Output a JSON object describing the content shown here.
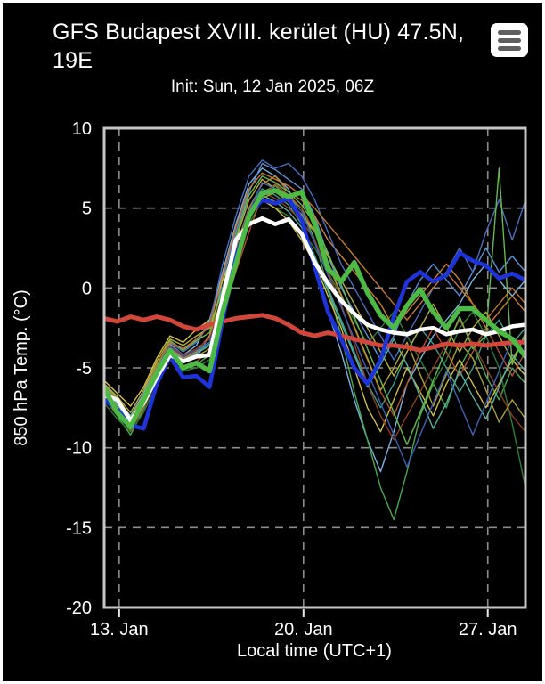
{
  "header": {
    "title": "GFS Budapest XVIII. kerület (HU) 47.5N, 19E",
    "init_label": "Init: Sun, 12 Jan 2025, 06Z",
    "menu_icon": "hamburger-icon"
  },
  "colors": {
    "background": "#000000",
    "text": "#ffffff",
    "grid": "#8c8c8c",
    "plot_border": "#c6c6c6",
    "red_reference": "#d2463c",
    "blue_highlight": "#1e34d8",
    "white_highlight": "#ffffff",
    "green_highlight": "#4cba45"
  },
  "chart_data": {
    "type": "line",
    "title": "GFS Budapest XVIII. kerület (HU) 47.5N, 19E",
    "subtitle": "Init: Sun, 12 Jan 2025, 06Z",
    "xlabel": "Local time (UTC+1)",
    "ylabel": "850 hPa Temp. (°C)",
    "ylim": [
      -20,
      10
    ],
    "yticks": [
      10,
      5,
      0,
      -5,
      -10,
      -15,
      -20
    ],
    "xtick_labels": [
      "13. Jan",
      "20. Jan",
      "27. Jan"
    ],
    "xtick_positions_days": [
      0.57,
      7.57,
      14.57
    ],
    "x_range_days": [
      0,
      16
    ],
    "x_step_days": 0.5,
    "grid": "dashed",
    "legend": "none",
    "series": [
      {
        "name": "member-01",
        "role": "ensemble-member",
        "color": "#7ab3e2",
        "width": 1.4,
        "values": [
          -6.2,
          -7.0,
          -8.0,
          -6.6,
          -4.8,
          -3.5,
          -4.2,
          -3.6,
          -2.0,
          1.0,
          4.0,
          6.5,
          7.5,
          7.0,
          6.2,
          4.2,
          1.5,
          -1.5,
          -4.0,
          -7.0,
          -9.5,
          -11.5,
          -9.0,
          -6.0,
          -4.5,
          -3.0,
          -2.0,
          -1.0,
          0.5,
          1.5,
          0.5,
          -0.5,
          0.5
        ]
      },
      {
        "name": "member-02",
        "role": "ensemble-member",
        "color": "#5b8fd8",
        "width": 1.4,
        "values": [
          -6.8,
          -7.8,
          -8.8,
          -7.4,
          -5.6,
          -4.0,
          -4.6,
          -4.4,
          -3.0,
          0.5,
          3.5,
          6.0,
          7.8,
          7.4,
          6.8,
          6.2,
          4.5,
          2.0,
          0.0,
          -1.5,
          -3.0,
          -4.5,
          -3.0,
          -1.0,
          0.5,
          1.5,
          0.5,
          -0.5,
          1.0,
          2.5,
          1.0,
          2.0,
          1.0
        ]
      },
      {
        "name": "member-03",
        "role": "ensemble-member",
        "color": "#3f9e8e",
        "width": 1.4,
        "values": [
          -6.4,
          -7.2,
          -8.4,
          -7.0,
          -5.2,
          -3.8,
          -4.4,
          -4.0,
          -3.5,
          -0.5,
          2.5,
          5.0,
          6.2,
          5.8,
          5.2,
          4.0,
          2.0,
          0.0,
          -2.0,
          -4.0,
          -6.0,
          -7.5,
          -6.0,
          -4.0,
          -2.5,
          -3.5,
          -5.0,
          -6.5,
          -5.0,
          -3.0,
          -2.0,
          -3.5,
          -2.5
        ]
      },
      {
        "name": "member-04",
        "role": "ensemble-member",
        "color": "#49a94f",
        "width": 1.4,
        "values": [
          -6.9,
          -8.0,
          -9.2,
          -7.6,
          -5.6,
          -4.2,
          -5.0,
          -4.8,
          -4.2,
          -1.0,
          2.0,
          4.8,
          6.0,
          6.4,
          5.6,
          5.0,
          3.0,
          0.0,
          -3.0,
          -6.5,
          -9.5,
          -12.5,
          -14.5,
          -11.5,
          -8.0,
          -6.0,
          -7.5,
          -5.0,
          -3.5,
          -5.5,
          -7.0,
          -5.0,
          -6.0
        ]
      },
      {
        "name": "member-05",
        "role": "ensemble-member",
        "color": "#2f7d36",
        "width": 1.4,
        "values": [
          -7.2,
          -8.2,
          -9.0,
          -7.8,
          -6.0,
          -4.5,
          -5.2,
          -5.0,
          -4.5,
          -1.5,
          1.5,
          4.0,
          5.5,
          5.0,
          4.5,
          3.5,
          2.5,
          1.0,
          -0.5,
          -2.0,
          -3.5,
          -2.5,
          -1.5,
          -3.0,
          -4.5,
          -6.0,
          -4.5,
          -2.5,
          -1.5,
          -3.0,
          -5.0,
          -8.5,
          -12.5
        ]
      },
      {
        "name": "member-06",
        "role": "ensemble-member",
        "color": "#b6b13d",
        "width": 1.4,
        "values": [
          -6.0,
          -6.8,
          -7.8,
          -6.4,
          -4.6,
          -3.2,
          -3.6,
          -3.0,
          -2.5,
          0.0,
          3.0,
          5.5,
          6.8,
          6.2,
          5.5,
          4.5,
          3.5,
          2.0,
          0.5,
          -1.0,
          -2.5,
          -4.0,
          -5.5,
          -4.0,
          -2.5,
          -1.0,
          -2.5,
          -4.0,
          -2.5,
          -1.5,
          -3.0,
          -4.5,
          -3.0
        ]
      },
      {
        "name": "member-07",
        "role": "ensemble-member",
        "color": "#d2bf45",
        "width": 1.4,
        "values": [
          -5.8,
          -6.6,
          -7.4,
          -6.2,
          -4.4,
          -3.0,
          -3.4,
          -2.6,
          -2.0,
          0.5,
          2.5,
          4.5,
          5.5,
          5.0,
          4.2,
          3.0,
          1.5,
          -0.5,
          -2.5,
          -5.0,
          -7.5,
          -9.0,
          -7.0,
          -5.0,
          -6.5,
          -8.0,
          -6.0,
          -4.5,
          -6.0,
          -7.5,
          -6.0,
          -4.5,
          -5.5
        ]
      },
      {
        "name": "member-08",
        "role": "ensemble-member",
        "color": "#cd8133",
        "width": 1.4,
        "values": [
          -6.6,
          -7.4,
          -8.6,
          -7.2,
          -5.4,
          -3.8,
          -4.4,
          -4.0,
          -3.0,
          -0.5,
          2.5,
          5.0,
          6.5,
          7.0,
          6.0,
          5.5,
          4.5,
          3.0,
          2.0,
          1.0,
          0.0,
          -1.0,
          -2.5,
          -1.5,
          -0.5,
          0.5,
          1.5,
          0.5,
          -1.0,
          -2.5,
          -1.5,
          -0.5,
          -1.5
        ]
      },
      {
        "name": "member-09",
        "role": "ensemble-member",
        "color": "#b0522b",
        "width": 1.4,
        "values": [
          -7.0,
          -7.9,
          -8.9,
          -7.5,
          -5.8,
          -4.3,
          -5.0,
          -4.6,
          -4.0,
          -1.5,
          1.0,
          3.5,
          5.8,
          6.5,
          5.8,
          5.0,
          3.5,
          1.5,
          -0.5,
          -2.5,
          -4.5,
          -6.5,
          -8.0,
          -6.0,
          -4.0,
          -2.5,
          -4.0,
          -5.5,
          -4.0,
          -2.5,
          -4.0,
          -5.5,
          -4.0
        ]
      },
      {
        "name": "member-10",
        "role": "ensemble-member",
        "color": "#8e3d22",
        "width": 1.4,
        "values": [
          -6.7,
          -7.6,
          -8.4,
          -7.0,
          -5.0,
          -3.6,
          -4.2,
          -3.8,
          -3.2,
          -1.0,
          2.0,
          4.2,
          6.0,
          5.6,
          5.0,
          4.2,
          3.0,
          1.0,
          -1.0,
          -3.5,
          -6.0,
          -8.0,
          -9.5,
          -8.0,
          -6.5,
          -5.0,
          -3.5,
          -2.0,
          -3.5,
          -5.0,
          -6.5,
          -8.0,
          -9.0
        ]
      },
      {
        "name": "member-11",
        "role": "ensemble-member",
        "color": "#4a6fbf",
        "width": 1.4,
        "values": [
          -6.3,
          -7.1,
          -8.2,
          -6.8,
          -5.0,
          -3.4,
          -4.0,
          -3.4,
          -2.2,
          1.5,
          4.5,
          7.0,
          8.0,
          7.5,
          7.8,
          7.0,
          5.5,
          3.5,
          1.5,
          0.0,
          -1.5,
          -3.0,
          -4.5,
          -3.0,
          -1.5,
          0.0,
          1.0,
          2.5,
          1.0,
          3.5,
          5.5,
          3.0,
          5.5
        ]
      },
      {
        "name": "member-12",
        "role": "ensemble-member",
        "color": "#58b0a0",
        "width": 1.4,
        "values": [
          -6.5,
          -7.3,
          -8.5,
          -7.1,
          -5.3,
          -3.9,
          -4.5,
          -4.1,
          -3.6,
          -1.0,
          2.0,
          4.6,
          5.8,
          5.4,
          4.8,
          3.8,
          1.8,
          -0.2,
          -2.2,
          -4.2,
          -6.2,
          -4.8,
          -3.2,
          -4.8,
          -6.8,
          -8.8,
          -7.2,
          -5.2,
          -6.8,
          -8.2,
          -6.2,
          -4.2,
          -5.2
        ]
      },
      {
        "name": "member-13",
        "role": "ensemble-member",
        "color": "#66b84f",
        "width": 1.4,
        "values": [
          -6.1,
          -6.9,
          -8.1,
          -6.7,
          -4.9,
          -3.3,
          -3.9,
          -3.3,
          -2.8,
          0.0,
          3.2,
          5.8,
          7.0,
          6.6,
          6.0,
          5.2,
          4.0,
          2.2,
          0.2,
          -1.8,
          -3.8,
          -5.8,
          -7.8,
          -9.8,
          -7.8,
          -5.8,
          -3.8,
          -1.8,
          -3.8,
          -3.0,
          7.5,
          -4.8,
          -2.8
        ]
      },
      {
        "name": "member-14",
        "role": "ensemble-member",
        "color": "#a8a035",
        "width": 1.4,
        "values": [
          -6.9,
          -7.7,
          -8.7,
          -7.3,
          -5.5,
          -4.1,
          -4.7,
          -4.3,
          -3.8,
          -1.2,
          1.8,
          4.4,
          5.6,
          6.0,
          5.4,
          4.6,
          3.6,
          1.6,
          -0.4,
          -2.4,
          -4.4,
          -6.4,
          -5.0,
          -3.4,
          -5.4,
          -7.4,
          -5.4,
          -3.4,
          -4.4,
          -6.4,
          -8.4,
          -7.0,
          -8.2
        ]
      },
      {
        "name": "member-15",
        "role": "ensemble-member",
        "color": "#c2772f",
        "width": 1.4,
        "values": [
          -6.2,
          -7.0,
          -8.2,
          -6.8,
          -4.8,
          -3.4,
          -3.8,
          -3.2,
          -2.4,
          0.8,
          3.8,
          6.2,
          7.2,
          6.8,
          6.4,
          5.8,
          5.0,
          4.0,
          3.0,
          2.0,
          1.0,
          0.0,
          -1.0,
          -2.0,
          -1.0,
          0.0,
          1.0,
          0.0,
          -1.0,
          -2.0,
          -1.0,
          0.0,
          -1.0
        ]
      },
      {
        "name": "member-16",
        "role": "ensemble-member",
        "color": "#3e62b0",
        "width": 1.4,
        "values": [
          -6.6,
          -7.5,
          -8.5,
          -7.0,
          -5.1,
          -3.7,
          -4.3,
          -3.9,
          -3.4,
          -0.8,
          2.2,
          4.8,
          6.6,
          6.2,
          5.6,
          4.8,
          2.8,
          0.8,
          -1.2,
          -3.2,
          -5.2,
          -7.2,
          -9.2,
          -11.2,
          -9.2,
          -7.2,
          -5.2,
          -7.2,
          -9.2,
          -7.2,
          -5.2,
          -3.2,
          -4.2
        ]
      },
      {
        "name": "red-reference-line",
        "role": "highlight",
        "color": "#d2463c",
        "width": 5,
        "values": [
          -1.9,
          -2.1,
          -1.8,
          -2.0,
          -1.8,
          -2.0,
          -2.4,
          -2.6,
          -2.3,
          -2.1,
          -1.9,
          -1.8,
          -1.7,
          -1.9,
          -2.3,
          -2.8,
          -3.0,
          -2.8,
          -3.0,
          -3.2,
          -3.4,
          -3.6,
          -3.6,
          -3.7,
          -3.9,
          -3.7,
          -3.5,
          -3.6,
          -3.5,
          -3.6,
          -3.5,
          -3.4,
          -3.4
        ]
      },
      {
        "name": "blue-highlight-line",
        "role": "highlight",
        "color": "#1e34d8",
        "width": 4.6,
        "values": [
          -7.0,
          -7.6,
          -8.6,
          -8.8,
          -6.0,
          -4.3,
          -5.6,
          -5.5,
          -6.2,
          -2.0,
          1.9,
          4.6,
          5.5,
          5.3,
          5.6,
          4.3,
          1.3,
          -1.5,
          -3.2,
          -5.0,
          -6.0,
          -4.5,
          -1.8,
          0.4,
          1.0,
          0.4,
          0.8,
          2.2,
          1.7,
          1.4,
          0.6,
          0.9,
          0.5
        ]
      },
      {
        "name": "white-highlight-line",
        "role": "highlight",
        "color": "#ffffff",
        "width": 4.6,
        "values": [
          -6.7,
          -7.0,
          -8.3,
          -7.2,
          -5.6,
          -4.2,
          -4.6,
          -4.3,
          -4.2,
          -0.6,
          3.0,
          4.0,
          4.35,
          4.0,
          4.3,
          3.4,
          1.6,
          0.3,
          -0.8,
          -1.6,
          -2.3,
          -2.6,
          -2.8,
          -2.9,
          -2.6,
          -2.5,
          -2.9,
          -2.7,
          -2.6,
          -2.9,
          -2.7,
          -2.4,
          -2.3
        ]
      },
      {
        "name": "green-highlight-line",
        "role": "highlight",
        "color": "#4cba45",
        "width": 5.4,
        "values": [
          -6.3,
          -7.8,
          -8.7,
          -7.0,
          -5.3,
          -3.9,
          -5.0,
          -4.7,
          -5.2,
          -1.5,
          1.5,
          4.5,
          5.9,
          6.1,
          5.7,
          6.0,
          4.0,
          1.2,
          0.4,
          1.6,
          -0.3,
          -1.7,
          -2.5,
          -1.1,
          -0.1,
          -1.5,
          -2.5,
          -1.3,
          -1.3,
          -2.0,
          -2.7,
          -3.2,
          -4.3
        ]
      }
    ]
  }
}
